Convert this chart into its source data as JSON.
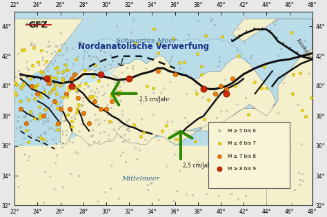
{
  "lon_min": 22,
  "lon_max": 48,
  "lat_min": 32,
  "lat_max": 45,
  "lon_ticks": [
    22,
    24,
    26,
    28,
    30,
    32,
    34,
    36,
    38,
    40,
    42,
    44,
    46,
    48
  ],
  "lat_ticks": [
    32,
    34,
    36,
    38,
    40,
    42,
    44
  ],
  "land_color": "#f5f0cc",
  "sea_color": "#b8dce8",
  "fault_color": "#111111",
  "title_text": "Nordanatolische Verwerfung",
  "schwarzes_meer": "Schwarzes Meer",
  "mittelmeer": "Mittelmeer",
  "kaukasus": "Kaukasus",
  "arrow1_label": "2,5 cm/Jahr",
  "arrow2_label": "2,5 cm/Jahr",
  "legend_labels": [
    "M ≥ 5 bis 6",
    "M ≥ 6 bis 7",
    "M ≥ 7 bis 8",
    "M ≥ 8 bis 9"
  ],
  "gfz_text": "GFZ",
  "arrow_color": "#2d8a00",
  "eq_m5_color": "none",
  "eq_m5_edge": "#777777",
  "eq_m6_color": "#f5d800",
  "eq_m6_edge": "#b8a000",
  "eq_m7_color": "#f07800",
  "eq_m7_edge": "#b05500",
  "eq_m8_color": "#cc2200",
  "eq_m8_edge": "#881500"
}
